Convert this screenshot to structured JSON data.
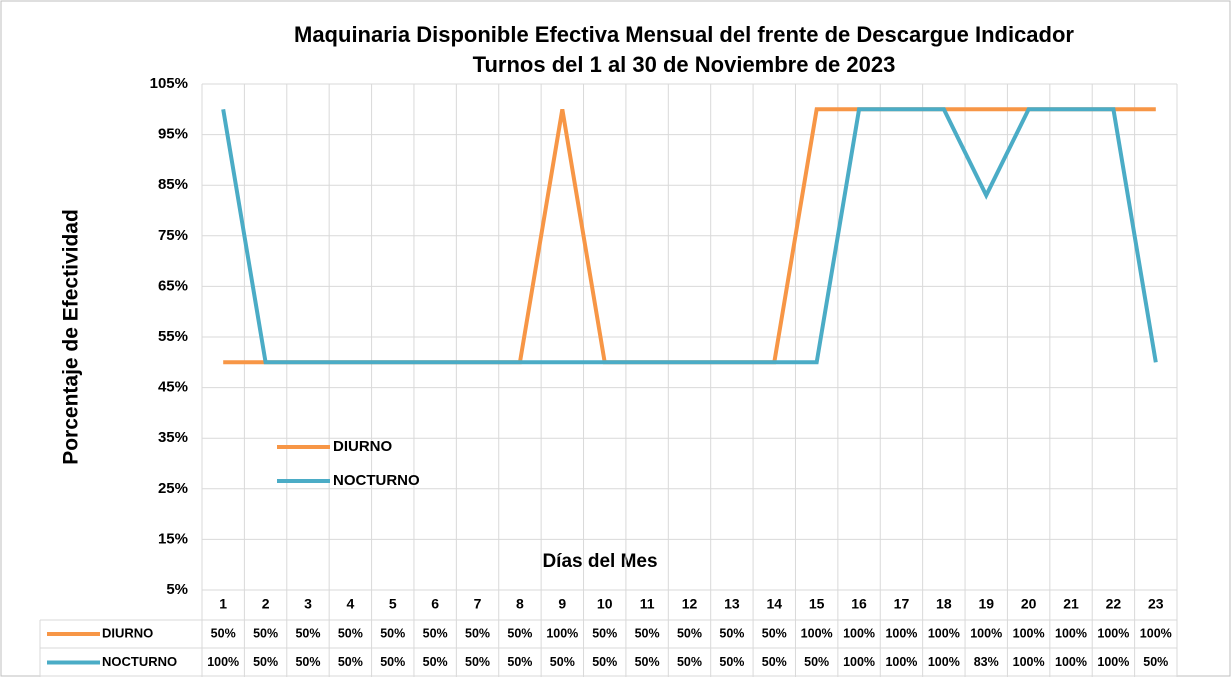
{
  "chart_data": {
    "type": "line",
    "title": "Maquinaria Disponible Efectiva Mensual del frente de Descargue Indicador",
    "subtitle": "Turnos del 1 al 30  de Noviembre de 2023",
    "y_label": "Porcentaje de Efectividad",
    "x_label": "Días del Mes",
    "categories": [
      "1",
      "2",
      "3",
      "4",
      "5",
      "6",
      "7",
      "8",
      "9",
      "10",
      "11",
      "12",
      "13",
      "14",
      "15",
      "16",
      "17",
      "18",
      "19",
      "20",
      "21",
      "22",
      "23"
    ],
    "series": [
      {
        "name": "DIURNO",
        "color": "#f79646",
        "values": [
          50,
          50,
          50,
          50,
          50,
          50,
          50,
          50,
          100,
          50,
          50,
          50,
          50,
          50,
          100,
          100,
          100,
          100,
          100,
          100,
          100,
          100,
          100
        ],
        "value_labels": [
          "50%",
          "50%",
          "50%",
          "50%",
          "50%",
          "50%",
          "50%",
          "50%",
          "100%",
          "50%",
          "50%",
          "50%",
          "50%",
          "50%",
          "100%",
          "100%",
          "100%",
          "100%",
          "100%",
          "100%",
          "100%",
          "100%",
          "100%"
        ]
      },
      {
        "name": "NOCTURNO",
        "color": "#4bacc6",
        "values": [
          100,
          50,
          50,
          50,
          50,
          50,
          50,
          50,
          50,
          50,
          50,
          50,
          50,
          50,
          50,
          100,
          100,
          100,
          83,
          100,
          100,
          100,
          50
        ],
        "value_labels": [
          "100%",
          "50%",
          "50%",
          "50%",
          "50%",
          "50%",
          "50%",
          "50%",
          "50%",
          "50%",
          "50%",
          "50%",
          "50%",
          "50%",
          "50%",
          "100%",
          "100%",
          "100%",
          "83%",
          "100%",
          "100%",
          "100%",
          "50%"
        ]
      }
    ],
    "ylim": [
      5,
      105
    ],
    "yticks": [
      {
        "value": 5,
        "label": "5%"
      },
      {
        "value": 15,
        "label": "15%"
      },
      {
        "value": 25,
        "label": "25%"
      },
      {
        "value": 35,
        "label": "35%"
      },
      {
        "value": 45,
        "label": "45%"
      },
      {
        "value": 55,
        "label": "55%"
      },
      {
        "value": 65,
        "label": "65%"
      },
      {
        "value": 75,
        "label": "75%"
      },
      {
        "value": 85,
        "label": "85%"
      },
      {
        "value": 95,
        "label": "95%"
      },
      {
        "value": 105,
        "label": "105%"
      }
    ],
    "grid": true
  }
}
